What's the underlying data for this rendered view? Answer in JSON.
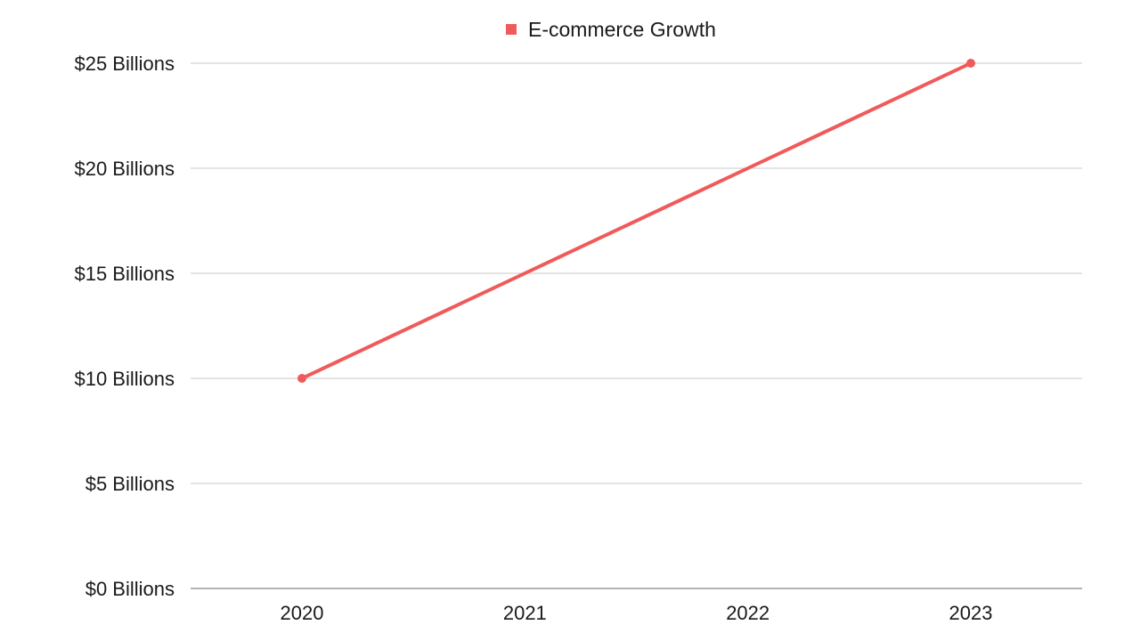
{
  "chart_data": {
    "type": "line",
    "title": "",
    "xlabel": "",
    "ylabel": "",
    "categories": [
      "2020",
      "2021",
      "2022",
      "2023"
    ],
    "series": [
      {
        "name": "E-commerce Growth",
        "color": "#f05a5a",
        "values": [
          10,
          15,
          20,
          25
        ]
      }
    ],
    "ylim": [
      0,
      25
    ],
    "yticks": [
      0,
      5,
      10,
      15,
      20,
      25
    ],
    "ytick_labels": [
      "$0 Billions",
      "$5 Billions",
      "$10 Billions",
      "$15 Billions",
      "$20 Billions",
      "$25 Billions"
    ],
    "markers_at": [
      "2020",
      "2023"
    ],
    "grid": true,
    "legend_position": "top-center"
  }
}
